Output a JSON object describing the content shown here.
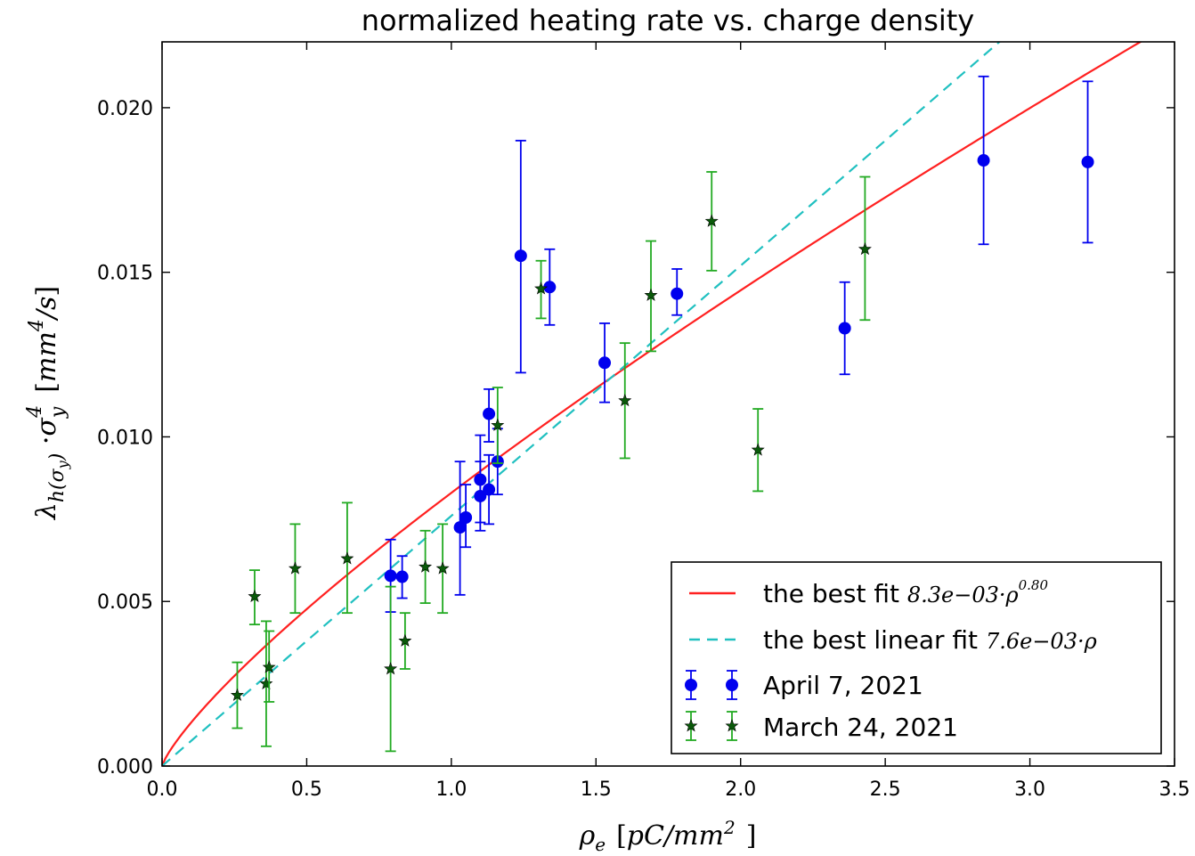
{
  "chart_data": {
    "type": "scatter",
    "title": "normalized heating rate vs. charge density",
    "xlabel": "ρe [pC/mm²]",
    "ylabel": "λh(σy)·σy⁴ [mm⁴/s]",
    "xlim": [
      0.0,
      3.5
    ],
    "ylim": [
      0.0,
      0.022
    ],
    "xticks": [
      0.0,
      0.5,
      1.0,
      1.5,
      2.0,
      2.5,
      3.0,
      3.5
    ],
    "xtick_labels": [
      "0.0",
      "0.5",
      "1.0",
      "1.5",
      "2.0",
      "2.5",
      "3.0",
      "3.5"
    ],
    "yticks": [
      0.0,
      0.005,
      0.01,
      0.015,
      0.02
    ],
    "ytick_labels": [
      "0.000",
      "0.005",
      "0.010",
      "0.015",
      "0.020"
    ],
    "grid": false,
    "legend_position": "bottom-right",
    "curves": [
      {
        "name": "the best fit 8.3e−03·ρ^0.80",
        "label_text": "the best fit",
        "label_math": "8.3e−03·ρ^0.80",
        "form": "power",
        "a": 0.0083,
        "b": 0.8,
        "color": "#ff2020",
        "dash": "solid"
      },
      {
        "name": "the best linear fit 7.6e−03·ρ",
        "label_text": "the best linear fit",
        "label_math": "7.6e−03·ρ",
        "form": "linear",
        "a": 0.0076,
        "color": "#20c0c0",
        "dash": "dashed"
      }
    ],
    "series": [
      {
        "name": "April 7, 2021",
        "marker": "circle",
        "color": "#0000ee",
        "points": [
          {
            "x": 0.79,
            "y": 0.00578,
            "lo": 0.00468,
            "hi": 0.00688
          },
          {
            "x": 0.83,
            "y": 0.00575,
            "lo": 0.0051,
            "hi": 0.00638
          },
          {
            "x": 1.03,
            "y": 0.00725,
            "lo": 0.0052,
            "hi": 0.00925
          },
          {
            "x": 1.05,
            "y": 0.00755,
            "lo": 0.00665,
            "hi": 0.00855
          },
          {
            "x": 1.1,
            "y": 0.0087,
            "lo": 0.0074,
            "hi": 0.01005
          },
          {
            "x": 1.1,
            "y": 0.0082,
            "lo": 0.00715,
            "hi": 0.00925
          },
          {
            "x": 1.13,
            "y": 0.0107,
            "lo": 0.00985,
            "hi": 0.01145
          },
          {
            "x": 1.13,
            "y": 0.0084,
            "lo": 0.00735,
            "hi": 0.00945
          },
          {
            "x": 1.16,
            "y": 0.00925,
            "lo": 0.00825,
            "hi": 0.01025
          },
          {
            "x": 1.24,
            "y": 0.0155,
            "lo": 0.01195,
            "hi": 0.019
          },
          {
            "x": 1.34,
            "y": 0.01455,
            "lo": 0.0134,
            "hi": 0.0157
          },
          {
            "x": 1.53,
            "y": 0.01225,
            "lo": 0.01105,
            "hi": 0.01345
          },
          {
            "x": 1.78,
            "y": 0.01435,
            "lo": 0.0137,
            "hi": 0.0151
          },
          {
            "x": 2.36,
            "y": 0.0133,
            "lo": 0.0119,
            "hi": 0.0147
          },
          {
            "x": 2.84,
            "y": 0.0184,
            "lo": 0.01585,
            "hi": 0.02095
          },
          {
            "x": 3.2,
            "y": 0.01835,
            "lo": 0.0159,
            "hi": 0.0208
          }
        ]
      },
      {
        "name": "March 24, 2021",
        "marker": "star",
        "color": "#0a5a0a",
        "errcolor": "#22aa22",
        "points": [
          {
            "x": 0.26,
            "y": 0.00215,
            "lo": 0.00115,
            "hi": 0.00315
          },
          {
            "x": 0.32,
            "y": 0.00515,
            "lo": 0.0043,
            "hi": 0.00595
          },
          {
            "x": 0.36,
            "y": 0.0025,
            "lo": 0.0006,
            "hi": 0.0044
          },
          {
            "x": 0.37,
            "y": 0.003,
            "lo": 0.00195,
            "hi": 0.0041
          },
          {
            "x": 0.46,
            "y": 0.006,
            "lo": 0.00465,
            "hi": 0.00735
          },
          {
            "x": 0.64,
            "y": 0.0063,
            "lo": 0.00465,
            "hi": 0.008
          },
          {
            "x": 0.79,
            "y": 0.00295,
            "lo": 0.00045,
            "hi": 0.00545
          },
          {
            "x": 0.84,
            "y": 0.0038,
            "lo": 0.00295,
            "hi": 0.00465
          },
          {
            "x": 0.91,
            "y": 0.00605,
            "lo": 0.00495,
            "hi": 0.00715
          },
          {
            "x": 0.97,
            "y": 0.006,
            "lo": 0.00465,
            "hi": 0.00735
          },
          {
            "x": 1.16,
            "y": 0.01035,
            "lo": 0.0092,
            "hi": 0.0115
          },
          {
            "x": 1.31,
            "y": 0.0145,
            "lo": 0.0136,
            "hi": 0.01535
          },
          {
            "x": 1.6,
            "y": 0.0111,
            "lo": 0.00935,
            "hi": 0.01285
          },
          {
            "x": 1.69,
            "y": 0.0143,
            "lo": 0.0126,
            "hi": 0.01595
          },
          {
            "x": 1.9,
            "y": 0.01655,
            "lo": 0.01505,
            "hi": 0.01805
          },
          {
            "x": 2.06,
            "y": 0.0096,
            "lo": 0.00835,
            "hi": 0.01085
          },
          {
            "x": 2.43,
            "y": 0.0157,
            "lo": 0.01355,
            "hi": 0.0179
          }
        ]
      }
    ]
  }
}
